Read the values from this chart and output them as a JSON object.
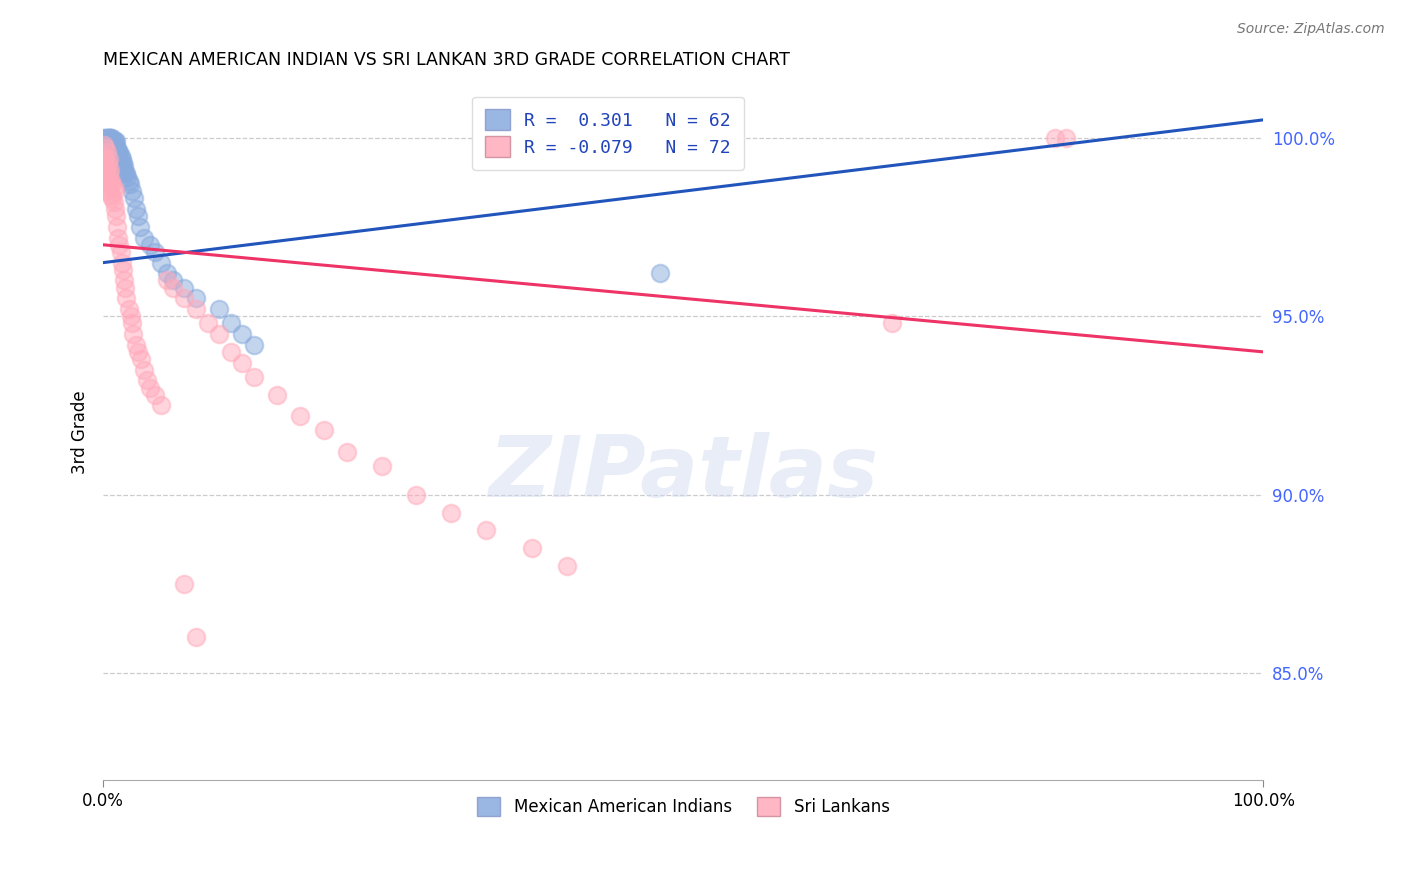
{
  "title": "MEXICAN AMERICAN INDIAN VS SRI LANKAN 3RD GRADE CORRELATION CHART",
  "source_text": "Source: ZipAtlas.com",
  "ylabel": "3rd Grade",
  "x_min": 0.0,
  "x_max": 1.0,
  "y_min": 0.82,
  "y_max": 1.015,
  "y_ticks": [
    0.85,
    0.9,
    0.95,
    1.0
  ],
  "y_tick_labels": [
    "85.0%",
    "90.0%",
    "95.0%",
    "100.0%"
  ],
  "x_tick_labels": [
    "0.0%",
    "100.0%"
  ],
  "blue_R": 0.301,
  "blue_N": 62,
  "pink_R": -0.079,
  "pink_N": 72,
  "blue_color": "#88aadd",
  "pink_color": "#ffaabb",
  "blue_line_color": "#2255bb",
  "pink_line_color": "#ee3366",
  "blue_label": "Mexican American Indians",
  "pink_label": "Sri Lankans",
  "watermark": "ZIPatlas",
  "blue_x": [
    0.001,
    0.002,
    0.002,
    0.003,
    0.003,
    0.004,
    0.004,
    0.005,
    0.005,
    0.005,
    0.006,
    0.006,
    0.007,
    0.007,
    0.008,
    0.008,
    0.009,
    0.009,
    0.01,
    0.01,
    0.01,
    0.01,
    0.01,
    0.01,
    0.011,
    0.011,
    0.012,
    0.012,
    0.013,
    0.013,
    0.014,
    0.014,
    0.015,
    0.015,
    0.016,
    0.016,
    0.017,
    0.017,
    0.018,
    0.019,
    0.02,
    0.021,
    0.022,
    0.023,
    0.025,
    0.027,
    0.028,
    0.03,
    0.032,
    0.035,
    0.04,
    0.045,
    0.05,
    0.055,
    0.06,
    0.07,
    0.08,
    0.1,
    0.11,
    0.12,
    0.13,
    0.48
  ],
  "blue_y": [
    1.0,
    0.998,
    1.0,
    0.998,
    1.0,
    1.0,
    0.998,
    1.0,
    1.0,
    0.999,
    1.0,
    1.0,
    0.999,
    0.998,
    1.0,
    0.999,
    0.999,
    0.997,
    0.998,
    0.997,
    0.998,
    0.999,
    0.997,
    0.996,
    0.999,
    0.997,
    0.997,
    0.995,
    0.996,
    0.994,
    0.996,
    0.994,
    0.995,
    0.993,
    0.994,
    0.992,
    0.993,
    0.991,
    0.992,
    0.99,
    0.99,
    0.989,
    0.988,
    0.987,
    0.985,
    0.983,
    0.98,
    0.978,
    0.975,
    0.972,
    0.97,
    0.968,
    0.965,
    0.962,
    0.96,
    0.958,
    0.955,
    0.952,
    0.948,
    0.945,
    0.942,
    0.962
  ],
  "pink_x": [
    0.001,
    0.001,
    0.001,
    0.002,
    0.002,
    0.002,
    0.002,
    0.003,
    0.003,
    0.003,
    0.003,
    0.004,
    0.004,
    0.005,
    0.005,
    0.005,
    0.006,
    0.006,
    0.007,
    0.007,
    0.008,
    0.008,
    0.009,
    0.009,
    0.01,
    0.01,
    0.011,
    0.012,
    0.013,
    0.014,
    0.015,
    0.016,
    0.017,
    0.018,
    0.019,
    0.02,
    0.022,
    0.024,
    0.025,
    0.026,
    0.028,
    0.03,
    0.033,
    0.035,
    0.038,
    0.04,
    0.045,
    0.05,
    0.055,
    0.06,
    0.07,
    0.08,
    0.09,
    0.1,
    0.11,
    0.12,
    0.13,
    0.15,
    0.17,
    0.19,
    0.21,
    0.24,
    0.27,
    0.3,
    0.33,
    0.37,
    0.4,
    0.68,
    0.82,
    0.83,
    0.07,
    0.08
  ],
  "pink_y": [
    0.998,
    0.995,
    0.992,
    0.997,
    0.994,
    0.991,
    0.988,
    0.996,
    0.992,
    0.988,
    0.985,
    0.993,
    0.989,
    0.994,
    0.99,
    0.986,
    0.991,
    0.987,
    0.988,
    0.984,
    0.987,
    0.983,
    0.986,
    0.982,
    0.985,
    0.98,
    0.978,
    0.975,
    0.972,
    0.97,
    0.968,
    0.965,
    0.963,
    0.96,
    0.958,
    0.955,
    0.952,
    0.95,
    0.948,
    0.945,
    0.942,
    0.94,
    0.938,
    0.935,
    0.932,
    0.93,
    0.928,
    0.925,
    0.96,
    0.958,
    0.955,
    0.952,
    0.948,
    0.945,
    0.94,
    0.937,
    0.933,
    0.928,
    0.922,
    0.918,
    0.912,
    0.908,
    0.9,
    0.895,
    0.89,
    0.885,
    0.88,
    0.948,
    1.0,
    1.0,
    0.875,
    0.86
  ]
}
